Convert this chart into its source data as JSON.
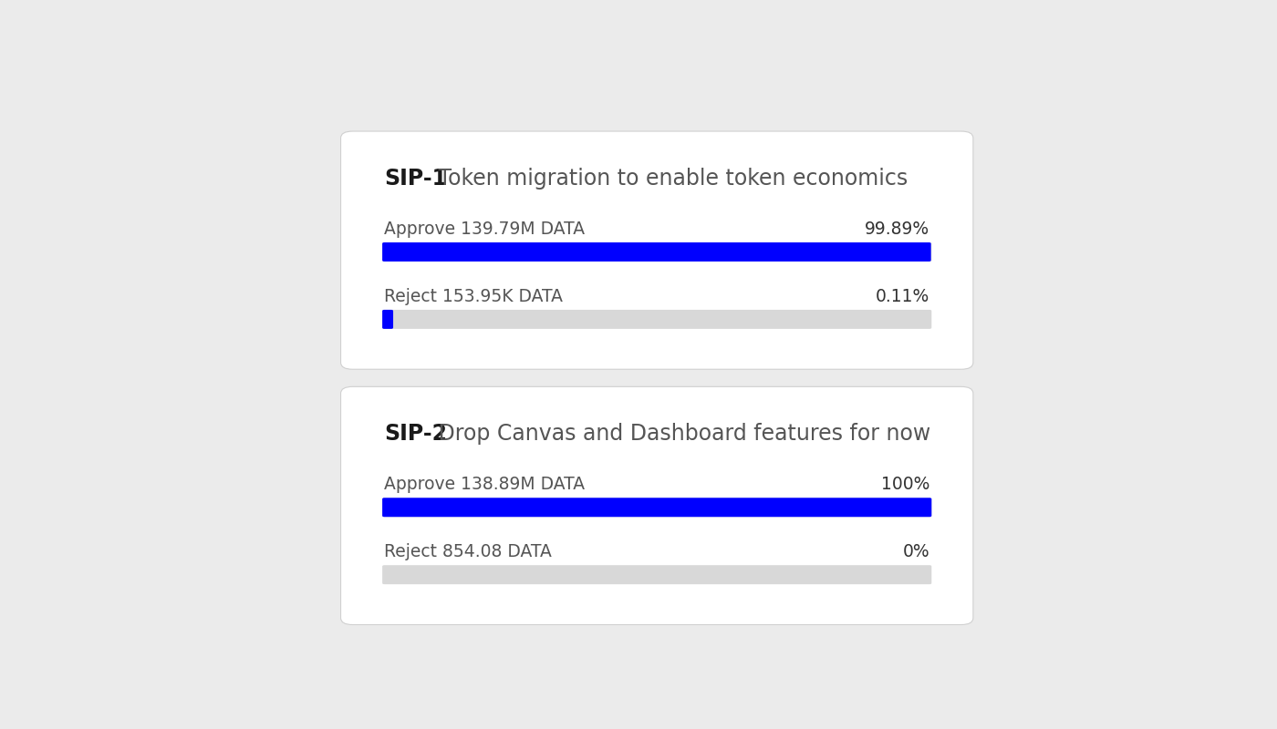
{
  "background_color": "#ebebeb",
  "card_color": "#ffffff",
  "proposals": [
    {
      "id": "SIP-1",
      "title": " Token migration to enable token economics",
      "approve_label": "Approve 139.79M DATA",
      "approve_pct": "99.89%",
      "approve_value": 99.89,
      "reject_label": "Reject 153.95K DATA",
      "reject_pct": "0.11%",
      "reject_value": 0.11
    },
    {
      "id": "SIP-2",
      "title": " Drop Canvas and Dashboard features for now",
      "approve_label": "Approve 138.89M DATA",
      "approve_pct": "100%",
      "approve_value": 100.0,
      "reject_label": "Reject 854.08 DATA",
      "reject_pct": "0%",
      "reject_value": 0.0
    }
  ],
  "bar_blue": "#0000ff",
  "bar_gray": "#d8d8d8",
  "title_bold_color": "#1a1a1a",
  "title_normal_color": "#555555",
  "label_color": "#555555",
  "pct_color": "#333333",
  "card_edge_color": "#d0d0d0"
}
